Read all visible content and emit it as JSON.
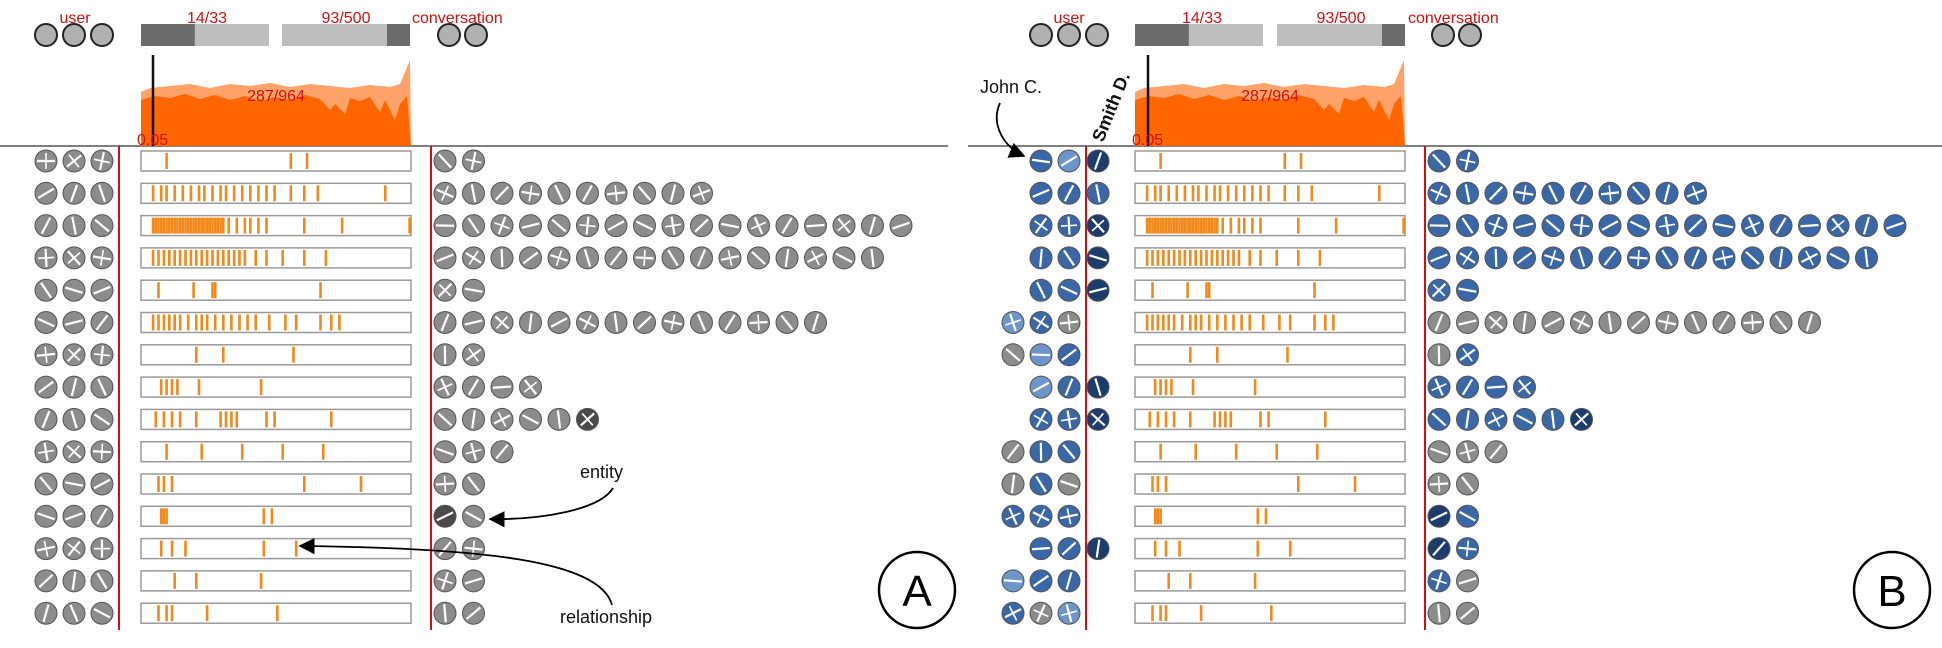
{
  "panels": [
    {
      "id": "A",
      "letter": "A",
      "labels": {
        "user": "user",
        "conversation": "conversation",
        "counter_left": "14/33",
        "counter_right": "93/500",
        "histogram_count": "287/964",
        "threshold": "0.05"
      },
      "progress": {
        "left_fraction": 0.42,
        "right_fraction": 0.18
      },
      "left_annotation": null,
      "rotated_label": null,
      "annotations": {
        "entity": "entity",
        "relationship": "relationship"
      },
      "rows": [
        {
          "users": [
            "g",
            "g",
            "g"
          ],
          "entities": [
            "g",
            "g"
          ],
          "ticks": [
            0.09,
            0.55,
            0.61
          ]
        },
        {
          "users": [
            "g",
            "g",
            "g"
          ],
          "entities": [
            "g",
            "g",
            "g",
            "g",
            "g",
            "g",
            "g",
            "g",
            "g",
            "g"
          ],
          "ticks": [
            0.04,
            0.07,
            0.09,
            0.12,
            0.15,
            0.18,
            0.21,
            0.23,
            0.26,
            0.29,
            0.31,
            0.34,
            0.37,
            0.4,
            0.43,
            0.46,
            0.49,
            0.55,
            0.6,
            0.65,
            0.9
          ]
        },
        {
          "users": [
            "g",
            "g",
            "g"
          ],
          "entities": [
            "g",
            "g",
            "g",
            "g",
            "g",
            "g",
            "g",
            "g",
            "g",
            "g",
            "g",
            "g",
            "g",
            "g",
            "g",
            "g",
            "g"
          ],
          "ticks": [
            0.04,
            0.05,
            0.06,
            0.07,
            0.08,
            0.09,
            0.1,
            0.11,
            0.12,
            0.13,
            0.14,
            0.15,
            0.16,
            0.17,
            0.18,
            0.19,
            0.2,
            0.21,
            0.22,
            0.23,
            0.24,
            0.25,
            0.26,
            0.27,
            0.28,
            0.29,
            0.3,
            0.32,
            0.35,
            0.38,
            0.4,
            0.43,
            0.46,
            0.6,
            0.74,
            0.99
          ]
        },
        {
          "users": [
            "g",
            "g",
            "g"
          ],
          "entities": [
            "g",
            "g",
            "g",
            "g",
            "g",
            "g",
            "g",
            "g",
            "g",
            "g",
            "g",
            "g",
            "g",
            "g",
            "g",
            "g"
          ],
          "ticks": [
            0.04,
            0.06,
            0.08,
            0.1,
            0.12,
            0.14,
            0.16,
            0.18,
            0.2,
            0.22,
            0.24,
            0.26,
            0.28,
            0.3,
            0.32,
            0.34,
            0.36,
            0.38,
            0.42,
            0.46,
            0.52,
            0.6,
            0.68
          ]
        },
        {
          "users": [
            "g",
            "g",
            "g"
          ],
          "entities": [
            "g",
            "g"
          ],
          "ticks": [
            0.06,
            0.19,
            0.26,
            0.27,
            0.66
          ]
        },
        {
          "users": [
            "g",
            "g",
            "g"
          ],
          "entities": [
            "g",
            "g",
            "g",
            "g",
            "g",
            "g",
            "g",
            "g",
            "g",
            "g",
            "g",
            "g",
            "g",
            "g"
          ],
          "ticks": [
            0.04,
            0.06,
            0.08,
            0.1,
            0.12,
            0.14,
            0.17,
            0.2,
            0.22,
            0.24,
            0.27,
            0.3,
            0.33,
            0.36,
            0.39,
            0.42,
            0.47,
            0.53,
            0.57,
            0.66,
            0.7,
            0.73
          ]
        },
        {
          "users": [
            "g",
            "g",
            "g"
          ],
          "entities": [
            "g",
            "g"
          ],
          "ticks": [
            0.2,
            0.3,
            0.56
          ]
        },
        {
          "users": [
            "g",
            "g",
            "g"
          ],
          "entities": [
            "g",
            "g",
            "g",
            "g"
          ],
          "ticks": [
            0.07,
            0.09,
            0.11,
            0.13,
            0.21,
            0.44
          ]
        },
        {
          "users": [
            "g",
            "g",
            "g"
          ],
          "entities": [
            "g",
            "g",
            "g",
            "g",
            "g",
            "d"
          ],
          "ticks": [
            0.05,
            0.08,
            0.11,
            0.14,
            0.2,
            0.29,
            0.31,
            0.33,
            0.35,
            0.46,
            0.49,
            0.7
          ]
        },
        {
          "users": [
            "g",
            "g",
            "g"
          ],
          "entities": [
            "g",
            "g",
            "g"
          ],
          "ticks": [
            0.09,
            0.22,
            0.37,
            0.52,
            0.67
          ]
        },
        {
          "users": [
            "g",
            "g",
            "g"
          ],
          "entities": [
            "g",
            "g"
          ],
          "ticks": [
            0.06,
            0.08,
            0.11,
            0.6,
            0.81
          ]
        },
        {
          "users": [
            "g",
            "g",
            "g"
          ],
          "entities": [
            "d",
            "g"
          ],
          "ticks": [
            0.07,
            0.08,
            0.09,
            0.45,
            0.48
          ]
        },
        {
          "users": [
            "g",
            "g",
            "g"
          ],
          "entities": [
            "g",
            "g"
          ],
          "ticks": [
            0.07,
            0.11,
            0.16,
            0.45,
            0.57
          ]
        },
        {
          "users": [
            "g",
            "g",
            "g"
          ],
          "entities": [
            "g",
            "g"
          ],
          "ticks": [
            0.12,
            0.2,
            0.44
          ]
        },
        {
          "users": [
            "g",
            "g",
            "g"
          ],
          "entities": [
            "g",
            "g"
          ],
          "ticks": [
            0.06,
            0.09,
            0.11,
            0.24,
            0.5
          ]
        }
      ]
    },
    {
      "id": "B",
      "letter": "B",
      "labels": {
        "user": "user",
        "conversation": "conversation",
        "counter_left": "14/33",
        "counter_right": "93/500",
        "histogram_count": "287/964",
        "threshold": "0.05"
      },
      "progress": {
        "left_fraction": 0.42,
        "right_fraction": 0.18
      },
      "left_annotation": "John C.",
      "rotated_label": "Smith D.",
      "annotations": null,
      "rows": [
        {
          "users": [
            "-",
            "b",
            "l",
            "n"
          ],
          "entities": [
            "b",
            "b"
          ],
          "ticks": [
            0.09,
            0.55,
            0.61
          ]
        },
        {
          "users": [
            "-",
            "b",
            "b",
            "b"
          ],
          "entities": [
            "b",
            "b",
            "b",
            "b",
            "b",
            "b",
            "b",
            "b",
            "b",
            "b"
          ],
          "ticks": [
            0.04,
            0.07,
            0.09,
            0.12,
            0.15,
            0.18,
            0.21,
            0.23,
            0.26,
            0.29,
            0.31,
            0.34,
            0.37,
            0.4,
            0.43,
            0.46,
            0.49,
            0.55,
            0.6,
            0.65,
            0.9
          ]
        },
        {
          "users": [
            "-",
            "b",
            "b",
            "n"
          ],
          "entities": [
            "b",
            "b",
            "b",
            "b",
            "b",
            "b",
            "b",
            "b",
            "b",
            "b",
            "b",
            "b",
            "b",
            "b",
            "b",
            "b",
            "b"
          ],
          "ticks": [
            0.04,
            0.05,
            0.06,
            0.07,
            0.08,
            0.09,
            0.1,
            0.11,
            0.12,
            0.13,
            0.14,
            0.15,
            0.16,
            0.17,
            0.18,
            0.19,
            0.2,
            0.21,
            0.22,
            0.23,
            0.24,
            0.25,
            0.26,
            0.27,
            0.28,
            0.29,
            0.3,
            0.32,
            0.35,
            0.38,
            0.4,
            0.43,
            0.46,
            0.6,
            0.74,
            0.99
          ]
        },
        {
          "users": [
            "-",
            "b",
            "b",
            "n"
          ],
          "entities": [
            "b",
            "b",
            "b",
            "b",
            "b",
            "b",
            "b",
            "b",
            "b",
            "b",
            "b",
            "b",
            "b",
            "b",
            "b",
            "b"
          ],
          "ticks": [
            0.04,
            0.06,
            0.08,
            0.1,
            0.12,
            0.14,
            0.16,
            0.18,
            0.2,
            0.22,
            0.24,
            0.26,
            0.28,
            0.3,
            0.32,
            0.34,
            0.36,
            0.38,
            0.42,
            0.46,
            0.52,
            0.6,
            0.68
          ]
        },
        {
          "users": [
            "-",
            "b",
            "b",
            "n"
          ],
          "entities": [
            "b",
            "b"
          ],
          "ticks": [
            0.06,
            0.19,
            0.26,
            0.27,
            0.66
          ]
        },
        {
          "users": [
            "l",
            "b",
            "g",
            "-"
          ],
          "entities": [
            "g",
            "g",
            "g",
            "g",
            "g",
            "g",
            "g",
            "g",
            "g",
            "g",
            "g",
            "g",
            "g",
            "g"
          ],
          "ticks": [
            0.04,
            0.06,
            0.08,
            0.1,
            0.12,
            0.14,
            0.17,
            0.2,
            0.22,
            0.24,
            0.27,
            0.3,
            0.33,
            0.36,
            0.39,
            0.42,
            0.47,
            0.53,
            0.57,
            0.66,
            0.7,
            0.73
          ]
        },
        {
          "users": [
            "g",
            "l",
            "b",
            "-"
          ],
          "entities": [
            "g",
            "b"
          ],
          "ticks": [
            0.2,
            0.3,
            0.56
          ]
        },
        {
          "users": [
            "-",
            "l",
            "b",
            "n"
          ],
          "entities": [
            "b",
            "b",
            "b",
            "b"
          ],
          "ticks": [
            0.07,
            0.09,
            0.11,
            0.13,
            0.21,
            0.44
          ]
        },
        {
          "users": [
            "-",
            "b",
            "b",
            "n"
          ],
          "entities": [
            "b",
            "b",
            "b",
            "b",
            "b",
            "n"
          ],
          "ticks": [
            0.05,
            0.08,
            0.11,
            0.14,
            0.2,
            0.29,
            0.31,
            0.33,
            0.35,
            0.46,
            0.49,
            0.7
          ]
        },
        {
          "users": [
            "g",
            "b",
            "b",
            "-"
          ],
          "entities": [
            "g",
            "g",
            "g"
          ],
          "ticks": [
            0.09,
            0.22,
            0.37,
            0.52,
            0.67
          ]
        },
        {
          "users": [
            "g",
            "b",
            "g",
            "-"
          ],
          "entities": [
            "g",
            "g"
          ],
          "ticks": [
            0.06,
            0.08,
            0.11,
            0.6,
            0.81
          ]
        },
        {
          "users": [
            "b",
            "b",
            "b",
            "-"
          ],
          "entities": [
            "n",
            "b"
          ],
          "ticks": [
            0.07,
            0.08,
            0.09,
            0.45,
            0.48
          ]
        },
        {
          "users": [
            "-",
            "b",
            "b",
            "n"
          ],
          "entities": [
            "n",
            "b"
          ],
          "ticks": [
            0.07,
            0.11,
            0.16,
            0.45,
            0.57
          ]
        },
        {
          "users": [
            "l",
            "b",
            "b",
            "-"
          ],
          "entities": [
            "b",
            "g"
          ],
          "ticks": [
            0.12,
            0.2,
            0.44
          ]
        },
        {
          "users": [
            "b",
            "g",
            "l",
            "-"
          ],
          "entities": [
            "g",
            "g"
          ],
          "ticks": [
            0.06,
            0.09,
            0.11,
            0.24,
            0.5
          ]
        }
      ]
    }
  ],
  "colors": {
    "red": "#cc1111",
    "orange": "#ff6600",
    "orange_light": "#ffa36b",
    "tick": "#f08a1c",
    "gray_node": "#8c8c8c",
    "dark_node": "#4a4a4a",
    "blue_node": "#3a67a8",
    "light_blue_node": "#6d95c9",
    "navy_node": "#1c3c6e",
    "progress_dark": "#6b6b6b",
    "progress_light": "#bdbdbd"
  }
}
